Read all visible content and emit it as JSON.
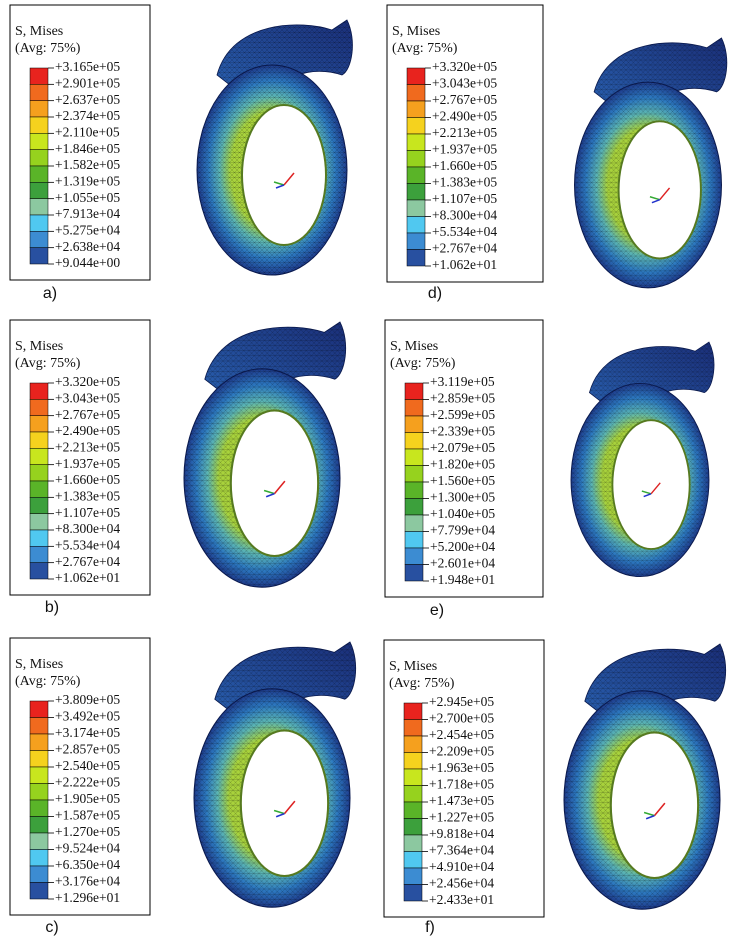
{
  "panels": [
    {
      "label": "a)",
      "title": "S, Mises",
      "subtitle": "(Avg: 75%)",
      "legend": [
        "+3.165e+05",
        "+2.901e+05",
        "+2.637e+05",
        "+2.374e+05",
        "+2.110e+05",
        "+1.846e+05",
        "+1.582e+05",
        "+1.319e+05",
        "+1.055e+05",
        "+7.913e+04",
        "+5.275e+04",
        "+2.638e+04",
        "+9.044e+00"
      ]
    },
    {
      "label": "b)",
      "title": "S, Mises",
      "subtitle": "(Avg: 75%)",
      "legend": [
        "+3.320e+05",
        "+3.043e+05",
        "+2.767e+05",
        "+2.490e+05",
        "+2.213e+05",
        "+1.937e+05",
        "+1.660e+05",
        "+1.383e+05",
        "+1.107e+05",
        "+8.300e+04",
        "+5.534e+04",
        "+2.767e+04",
        "+1.062e+01"
      ]
    },
    {
      "label": "c)",
      "title": "S, Mises",
      "subtitle": "(Avg: 75%)",
      "legend": [
        "+3.809e+05",
        "+3.492e+05",
        "+3.174e+05",
        "+2.857e+05",
        "+2.540e+05",
        "+2.222e+05",
        "+1.905e+05",
        "+1.587e+05",
        "+1.270e+05",
        "+9.524e+04",
        "+6.350e+04",
        "+3.176e+04",
        "+1.296e+01"
      ]
    },
    {
      "label": "d)",
      "title": "S, Mises",
      "subtitle": "(Avg: 75%)",
      "legend": [
        "+3.320e+05",
        "+3.043e+05",
        "+2.767e+05",
        "+2.490e+05",
        "+2.213e+05",
        "+1.937e+05",
        "+1.660e+05",
        "+1.383e+05",
        "+1.107e+05",
        "+8.300e+04",
        "+5.534e+04",
        "+2.767e+04",
        "+1.062e+01"
      ]
    },
    {
      "label": "e)",
      "title": "S, Mises",
      "subtitle": "(Avg: 75%)",
      "legend": [
        "+3.119e+05",
        "+2.859e+05",
        "+2.599e+05",
        "+2.339e+05",
        "+2.079e+05",
        "+1.820e+05",
        "+1.560e+05",
        "+1.300e+05",
        "+1.040e+05",
        "+7.799e+04",
        "+5.200e+04",
        "+2.601e+04",
        "+1.948e+01"
      ]
    },
    {
      "label": "f)",
      "title": "S, Mises",
      "subtitle": "(Avg: 75%)",
      "legend": [
        "+2.945e+05",
        "+2.700e+05",
        "+2.454e+05",
        "+2.209e+05",
        "+1.963e+05",
        "+1.718e+05",
        "+1.473e+05",
        "+1.227e+05",
        "+9.818e+04",
        "+7.364e+04",
        "+4.910e+04",
        "+2.456e+04",
        "+2.433e+01"
      ]
    }
  ]
}
